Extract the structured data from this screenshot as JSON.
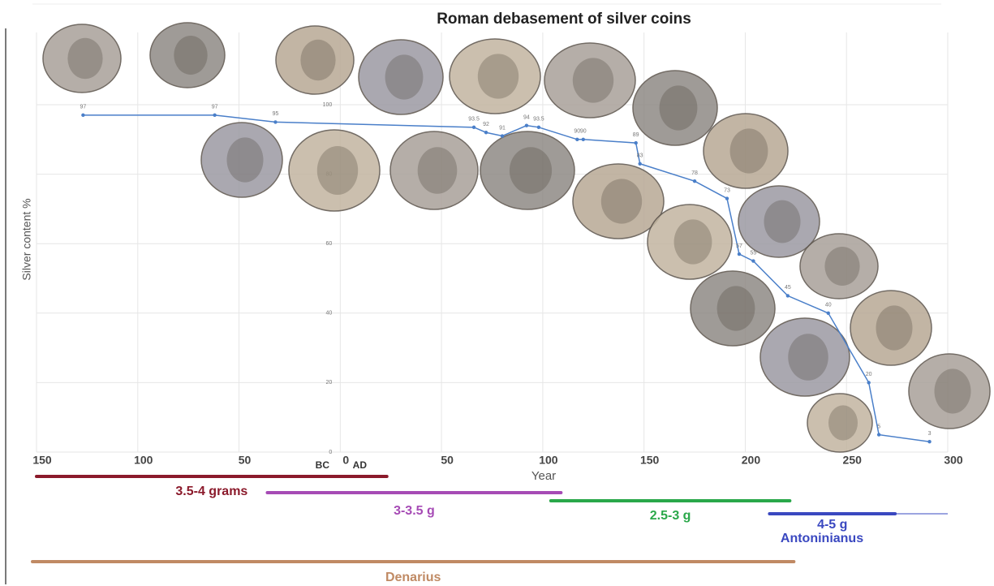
{
  "chart_data": {
    "type": "line",
    "title": "Roman debasement of silver coins",
    "x_label": "Year",
    "y_label": "Silver content %",
    "x": [
      -127,
      -62,
      -32,
      66,
      72,
      80,
      92,
      98,
      117,
      120,
      146,
      148,
      175,
      191,
      197,
      204,
      221,
      241,
      261,
      266,
      291
    ],
    "series": [
      {
        "name": "Silver content",
        "color": "#4a7fc9",
        "values": [
          97,
          97,
          95,
          93.5,
          92,
          91,
          94,
          93.5,
          90,
          90,
          89,
          83,
          78,
          73,
          57,
          55,
          45,
          40,
          20,
          5,
          3
        ]
      }
    ],
    "xlim": [
      -150,
      300
    ],
    "xticks": [
      {
        "value": -150,
        "label": "150"
      },
      {
        "value": -100,
        "label": "100"
      },
      {
        "value": -50,
        "label": "50"
      },
      0,
      50,
      100,
      150,
      200,
      250,
      300
    ],
    "ylim": [
      0,
      100
    ],
    "yticks": [
      0,
      20,
      40,
      60,
      80,
      100
    ],
    "grid": true,
    "era_labels": [
      "BC",
      "AD"
    ],
    "weight_periods": [
      {
        "label": "3.5-4 grams",
        "color": "#8b1a2b",
        "x_range": [
          -150,
          23
        ]
      },
      {
        "label": "3-3.5 g",
        "color": "#a64bb5",
        "x_range": [
          -36,
          109
        ]
      },
      {
        "label": "2.5-3 g",
        "color": "#2aa84a",
        "x_range": [
          104,
          222
        ]
      },
      {
        "label": "4-5 g",
        "color": "#3a48c0",
        "x_range": [
          212,
          274
        ]
      }
    ],
    "coin_periods": [
      {
        "label": "Denarius",
        "color": "#c08a64",
        "x_range": [
          -152,
          224
        ]
      },
      {
        "label": "Antoninianus",
        "color": "#3a48c0",
        "x_range": [
          212,
          300
        ]
      }
    ]
  }
}
